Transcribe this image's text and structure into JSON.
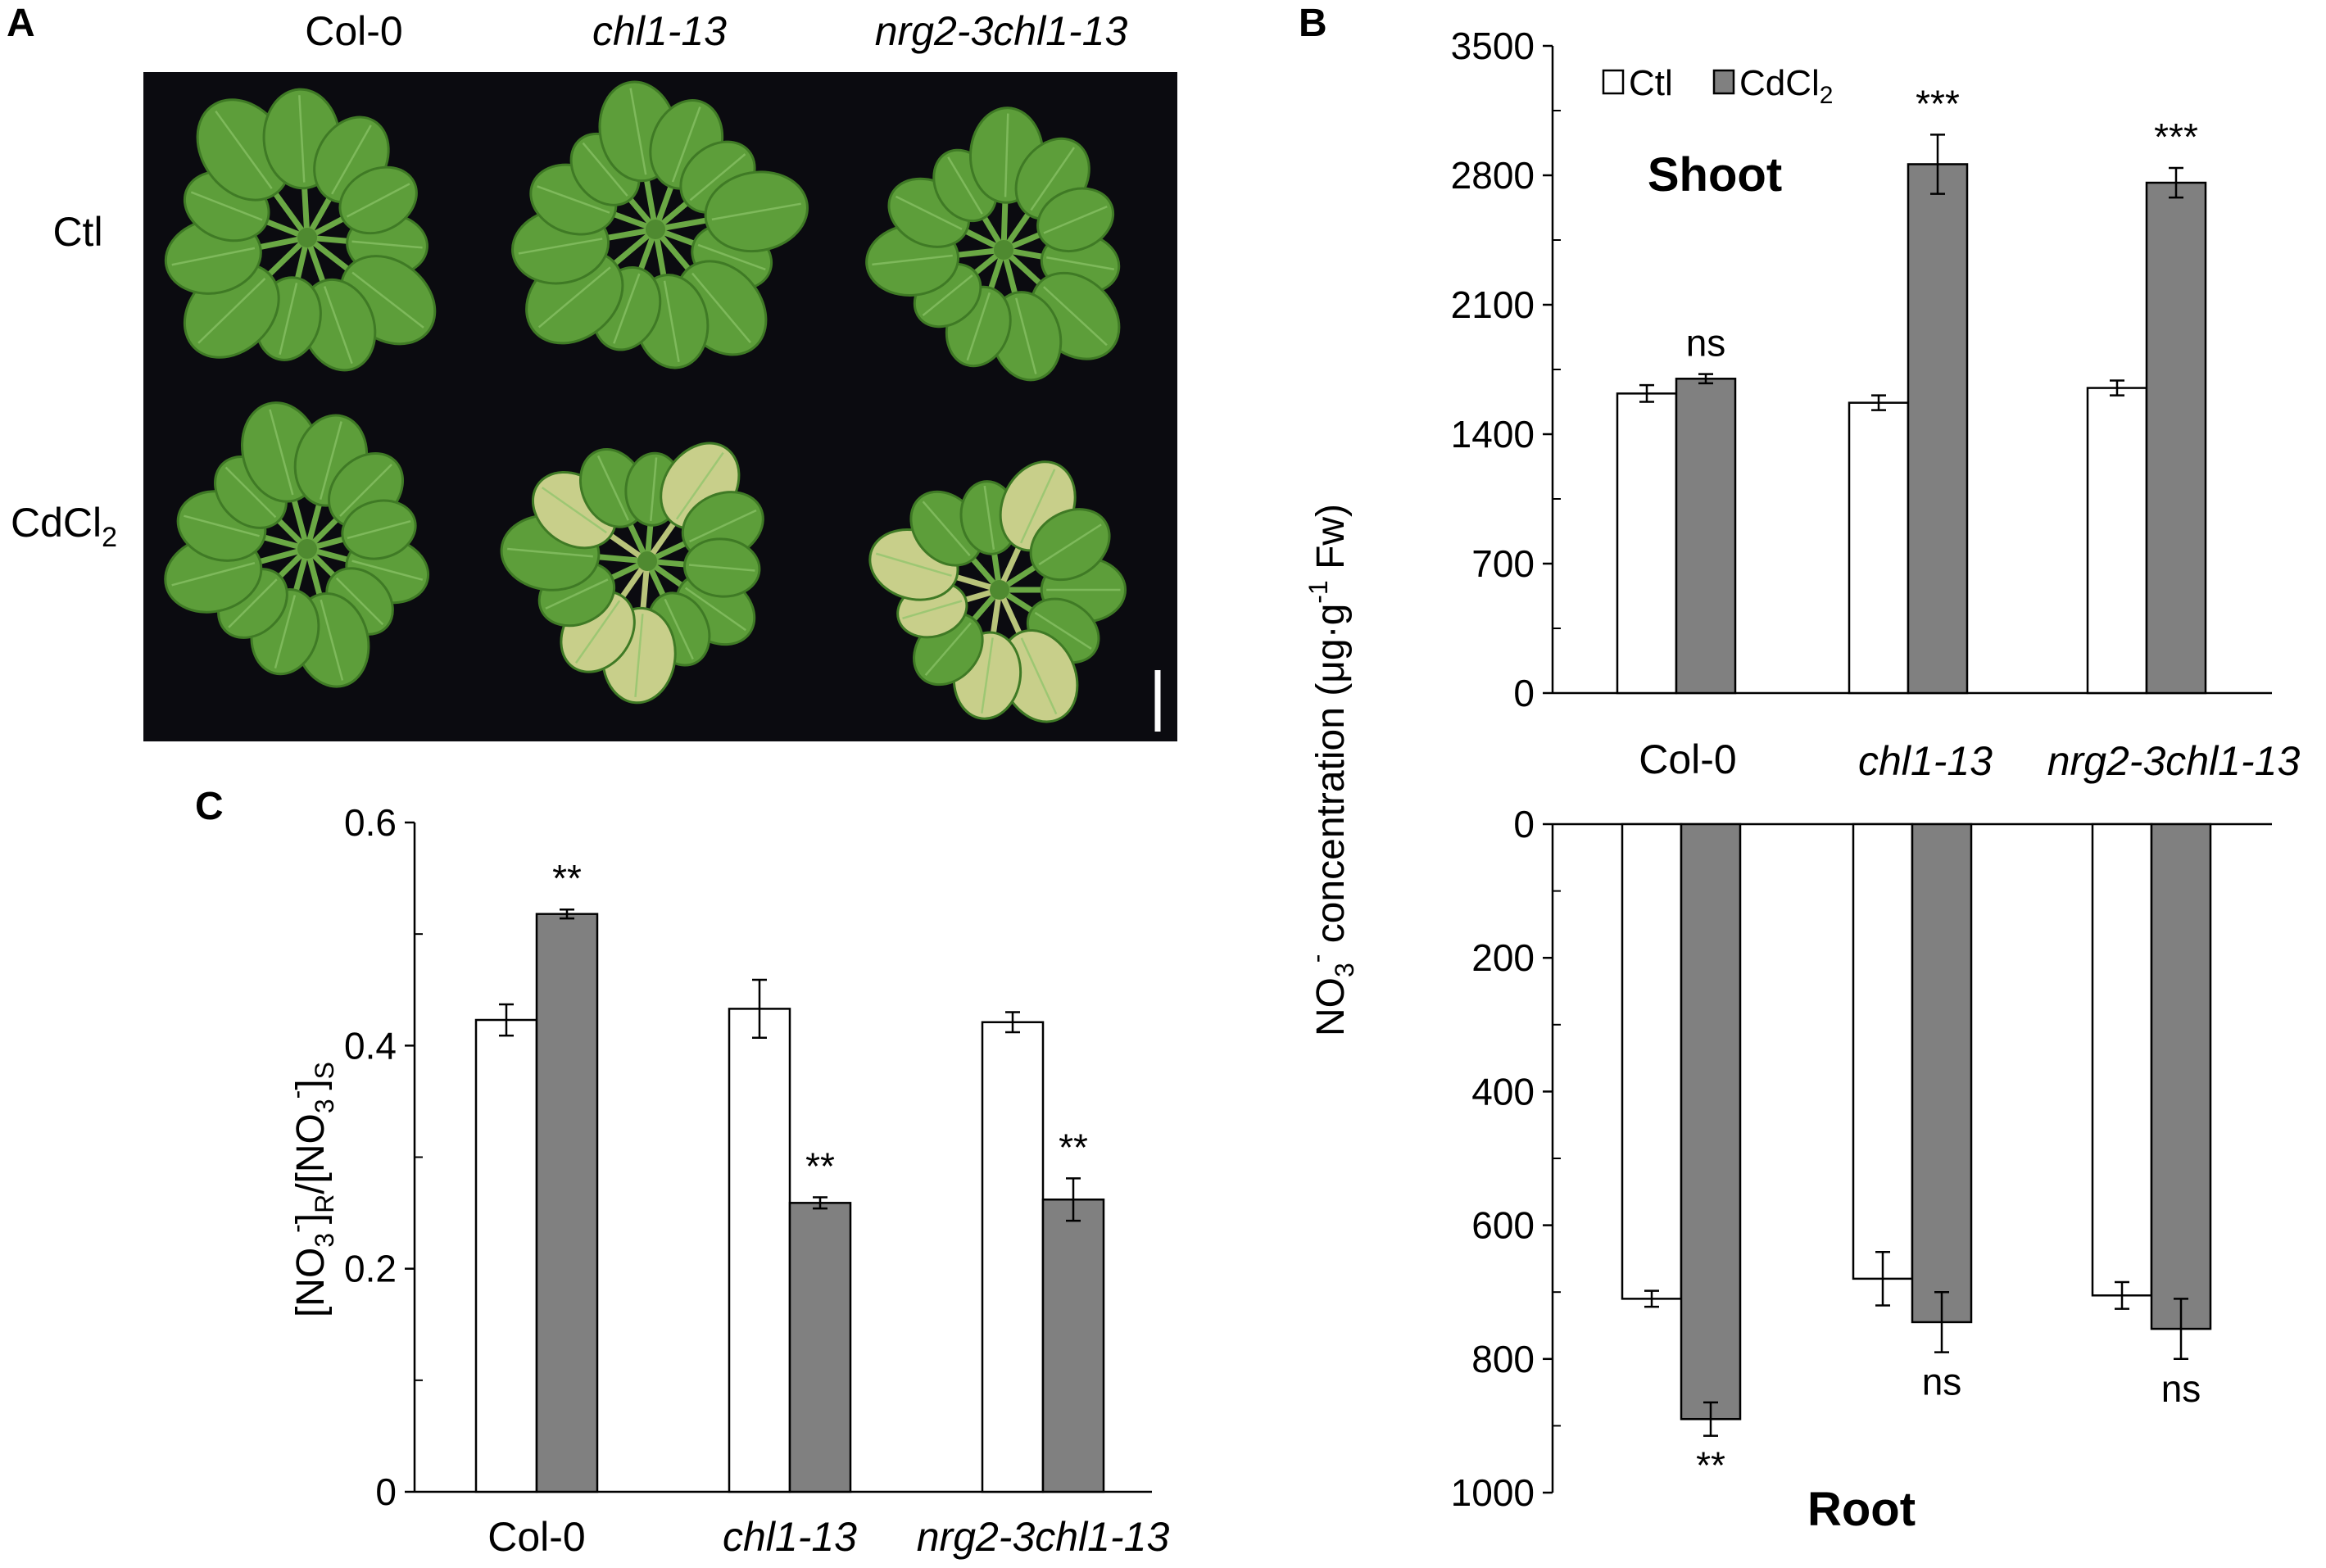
{
  "panel_a": {
    "letter": "A",
    "columns": [
      "Col-0",
      "chl1-13",
      "nrg2-3chl1-13"
    ],
    "rows": [
      {
        "label": "Ctl",
        "sub": ""
      },
      {
        "label": "CdCl",
        "sub": "2"
      }
    ],
    "colors": {
      "background": "#0b0b10",
      "leaf": "#5d9e3a",
      "leaf_edge": "#3f7a25",
      "chlorotic": "#c8cf8a",
      "scale_bar": "#ffffff"
    }
  },
  "panel_b_letter": "B",
  "panel_c_letter": "C",
  "colors": {
    "ctl_fill": "#ffffff",
    "cd_fill": "#808080",
    "stroke": "#000000"
  },
  "chart_data": [
    {
      "id": "shoot",
      "type": "bar",
      "title": "Shoot",
      "categories": [
        "Col-0",
        "chl1-13",
        "nrg2-3chl1-13"
      ],
      "series": [
        {
          "name": "Ctl",
          "values": [
            1620,
            1570,
            1650
          ],
          "errors": [
            45,
            40,
            40
          ]
        },
        {
          "name": "CdCl2",
          "values": [
            1700,
            2860,
            2760
          ],
          "errors": [
            25,
            160,
            80
          ]
        }
      ],
      "annotations": [
        "ns",
        "***",
        "***"
      ],
      "legend": {
        "ctl": "Ctl",
        "cd_main": "CdCl",
        "cd_sub": "2",
        "position": "top-left"
      },
      "ylim": [
        0,
        3500
      ],
      "yticks": [
        0,
        700,
        1400,
        2100,
        2800,
        3500
      ],
      "ylabel": {
        "main": "NO",
        "sub3": "3",
        "sup": "-",
        "mid": " concentration  (μg·g",
        "sup2": "-1",
        "end": " Fw)"
      }
    },
    {
      "id": "root",
      "type": "bar",
      "title": "Root",
      "inverted": true,
      "categories": [
        "Col-0",
        "chl1-13",
        "nrg2-3chl1-13"
      ],
      "series": [
        {
          "name": "Ctl",
          "values": [
            710,
            680,
            705
          ],
          "errors": [
            12,
            40,
            20
          ]
        },
        {
          "name": "CdCl2",
          "values": [
            890,
            745,
            755
          ],
          "errors": [
            25,
            45,
            45
          ]
        }
      ],
      "annotations": [
        "**",
        "ns",
        "ns"
      ],
      "ylim": [
        0,
        1000
      ],
      "yticks": [
        0,
        200,
        400,
        600,
        800,
        1000
      ]
    },
    {
      "id": "ratio",
      "type": "bar",
      "categories": [
        "Col-0",
        "chl1-13",
        "nrg2-3chl1-13"
      ],
      "series": [
        {
          "name": "Ctl",
          "values": [
            0.423,
            0.433,
            0.421
          ],
          "errors": [
            0.014,
            0.026,
            0.009
          ]
        },
        {
          "name": "CdCl2",
          "values": [
            0.518,
            0.259,
            0.262
          ],
          "errors": [
            0.004,
            0.005,
            0.019
          ]
        }
      ],
      "annotations": [
        "**",
        "**",
        "**"
      ],
      "ylim": [
        0,
        0.6
      ],
      "yticks": [
        0,
        0.2,
        0.4,
        0.6
      ],
      "ytick_labels": [
        "0",
        "0.2",
        "0.4",
        "0.6"
      ],
      "ylabel": {
        "b1": "[NO",
        "s1": "3",
        "p1": "-",
        "b2": "]",
        "s2": "R",
        "b3": "/[NO",
        "s3": "3",
        "p3": "-",
        "b4": "]",
        "s4": "S"
      }
    }
  ]
}
